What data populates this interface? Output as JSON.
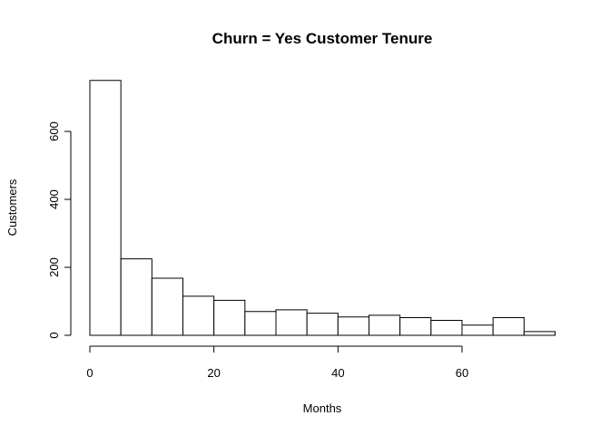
{
  "chart_data": {
    "type": "bar",
    "title": "Churn = Yes Customer Tenure",
    "xlabel": "Months",
    "ylabel": "Customers",
    "bins": [
      {
        "start": 0,
        "end": 5,
        "count": 750
      },
      {
        "start": 5,
        "end": 10,
        "count": 225
      },
      {
        "start": 10,
        "end": 15,
        "count": 168
      },
      {
        "start": 15,
        "end": 20,
        "count": 115
      },
      {
        "start": 20,
        "end": 25,
        "count": 103
      },
      {
        "start": 25,
        "end": 30,
        "count": 70
      },
      {
        "start": 30,
        "end": 35,
        "count": 75
      },
      {
        "start": 35,
        "end": 40,
        "count": 65
      },
      {
        "start": 40,
        "end": 45,
        "count": 54
      },
      {
        "start": 45,
        "end": 50,
        "count": 59
      },
      {
        "start": 50,
        "end": 55,
        "count": 52
      },
      {
        "start": 55,
        "end": 60,
        "count": 44
      },
      {
        "start": 60,
        "end": 65,
        "count": 30
      },
      {
        "start": 65,
        "end": 70,
        "count": 52
      },
      {
        "start": 70,
        "end": 75,
        "count": 11
      }
    ],
    "x_ticks": [
      0,
      20,
      40,
      60
    ],
    "y_ticks": [
      0,
      200,
      400,
      600
    ],
    "xlim": [
      0,
      75
    ],
    "ylim": [
      0,
      750
    ],
    "grid": false
  }
}
